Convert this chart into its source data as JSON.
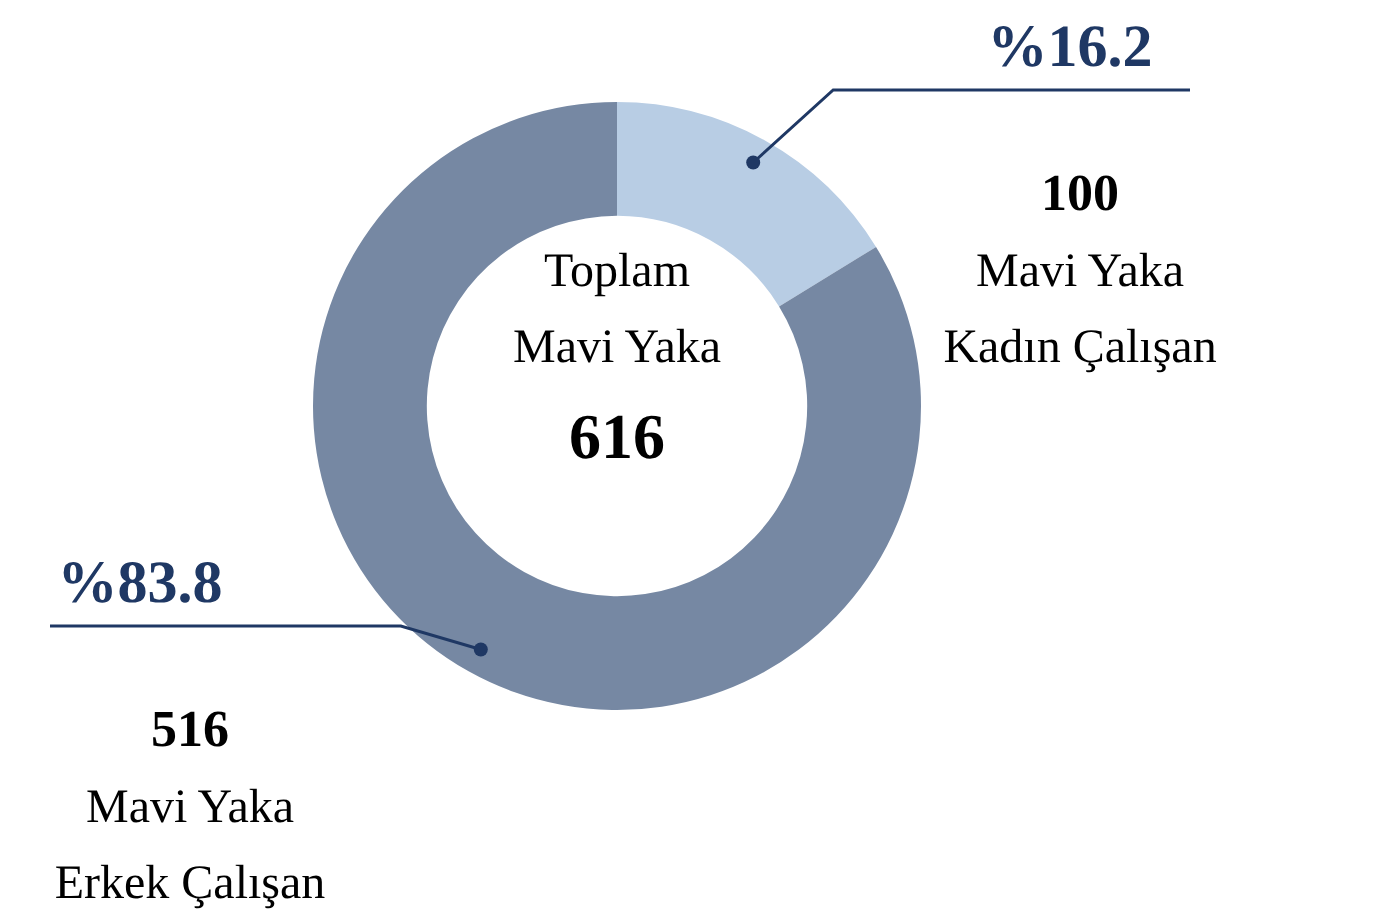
{
  "chart_data": {
    "type": "donut",
    "categories": [
      "Mavi Yaka Kadın Çalışan",
      "Mavi Yaka Erkek Çalışan"
    ],
    "values": [
      100,
      516
    ],
    "colors": [
      "#b8cde4",
      "#7688a3"
    ],
    "value_labels": [
      "100",
      "516"
    ],
    "annotations": [
      "%16.2",
      "%83.8",
      "Toplam Mavi Yaka",
      "616"
    ]
  }
}
